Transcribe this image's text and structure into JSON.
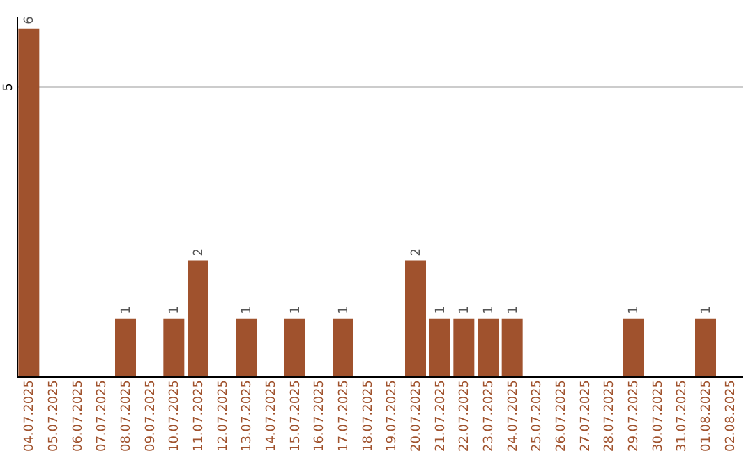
{
  "chart_data": {
    "type": "bar",
    "categories": [
      "04.07.2025",
      "05.07.2025",
      "06.07.2025",
      "07.07.2025",
      "08.07.2025",
      "09.07.2025",
      "10.07.2025",
      "11.07.2025",
      "12.07.2025",
      "13.07.2025",
      "14.07.2025",
      "15.07.2025",
      "16.07.2025",
      "17.07.2025",
      "18.07.2025",
      "19.07.2025",
      "20.07.2025",
      "21.07.2025",
      "22.07.2025",
      "23.07.2025",
      "24.07.2025",
      "25.07.2025",
      "26.07.2025",
      "27.07.2025",
      "28.07.2025",
      "29.07.2025",
      "30.07.2025",
      "31.07.2025",
      "01.08.2025",
      "02.08.2025"
    ],
    "values": [
      6,
      0,
      0,
      0,
      1,
      0,
      1,
      2,
      0,
      1,
      0,
      1,
      0,
      1,
      0,
      0,
      2,
      1,
      1,
      1,
      1,
      0,
      0,
      0,
      0,
      1,
      0,
      0,
      1,
      0
    ],
    "value_labels": [
      "6",
      null,
      null,
      null,
      "1",
      null,
      "1",
      "2",
      null,
      "1",
      null,
      "1",
      null,
      "1",
      null,
      null,
      "2",
      "1",
      "1",
      "1",
      "1",
      null,
      null,
      null,
      null,
      "1",
      null,
      null,
      "1",
      null
    ],
    "color": "#a0522d",
    "ylim": [
      0,
      6.2
    ],
    "yticks": [
      5
    ],
    "grid": "y"
  }
}
